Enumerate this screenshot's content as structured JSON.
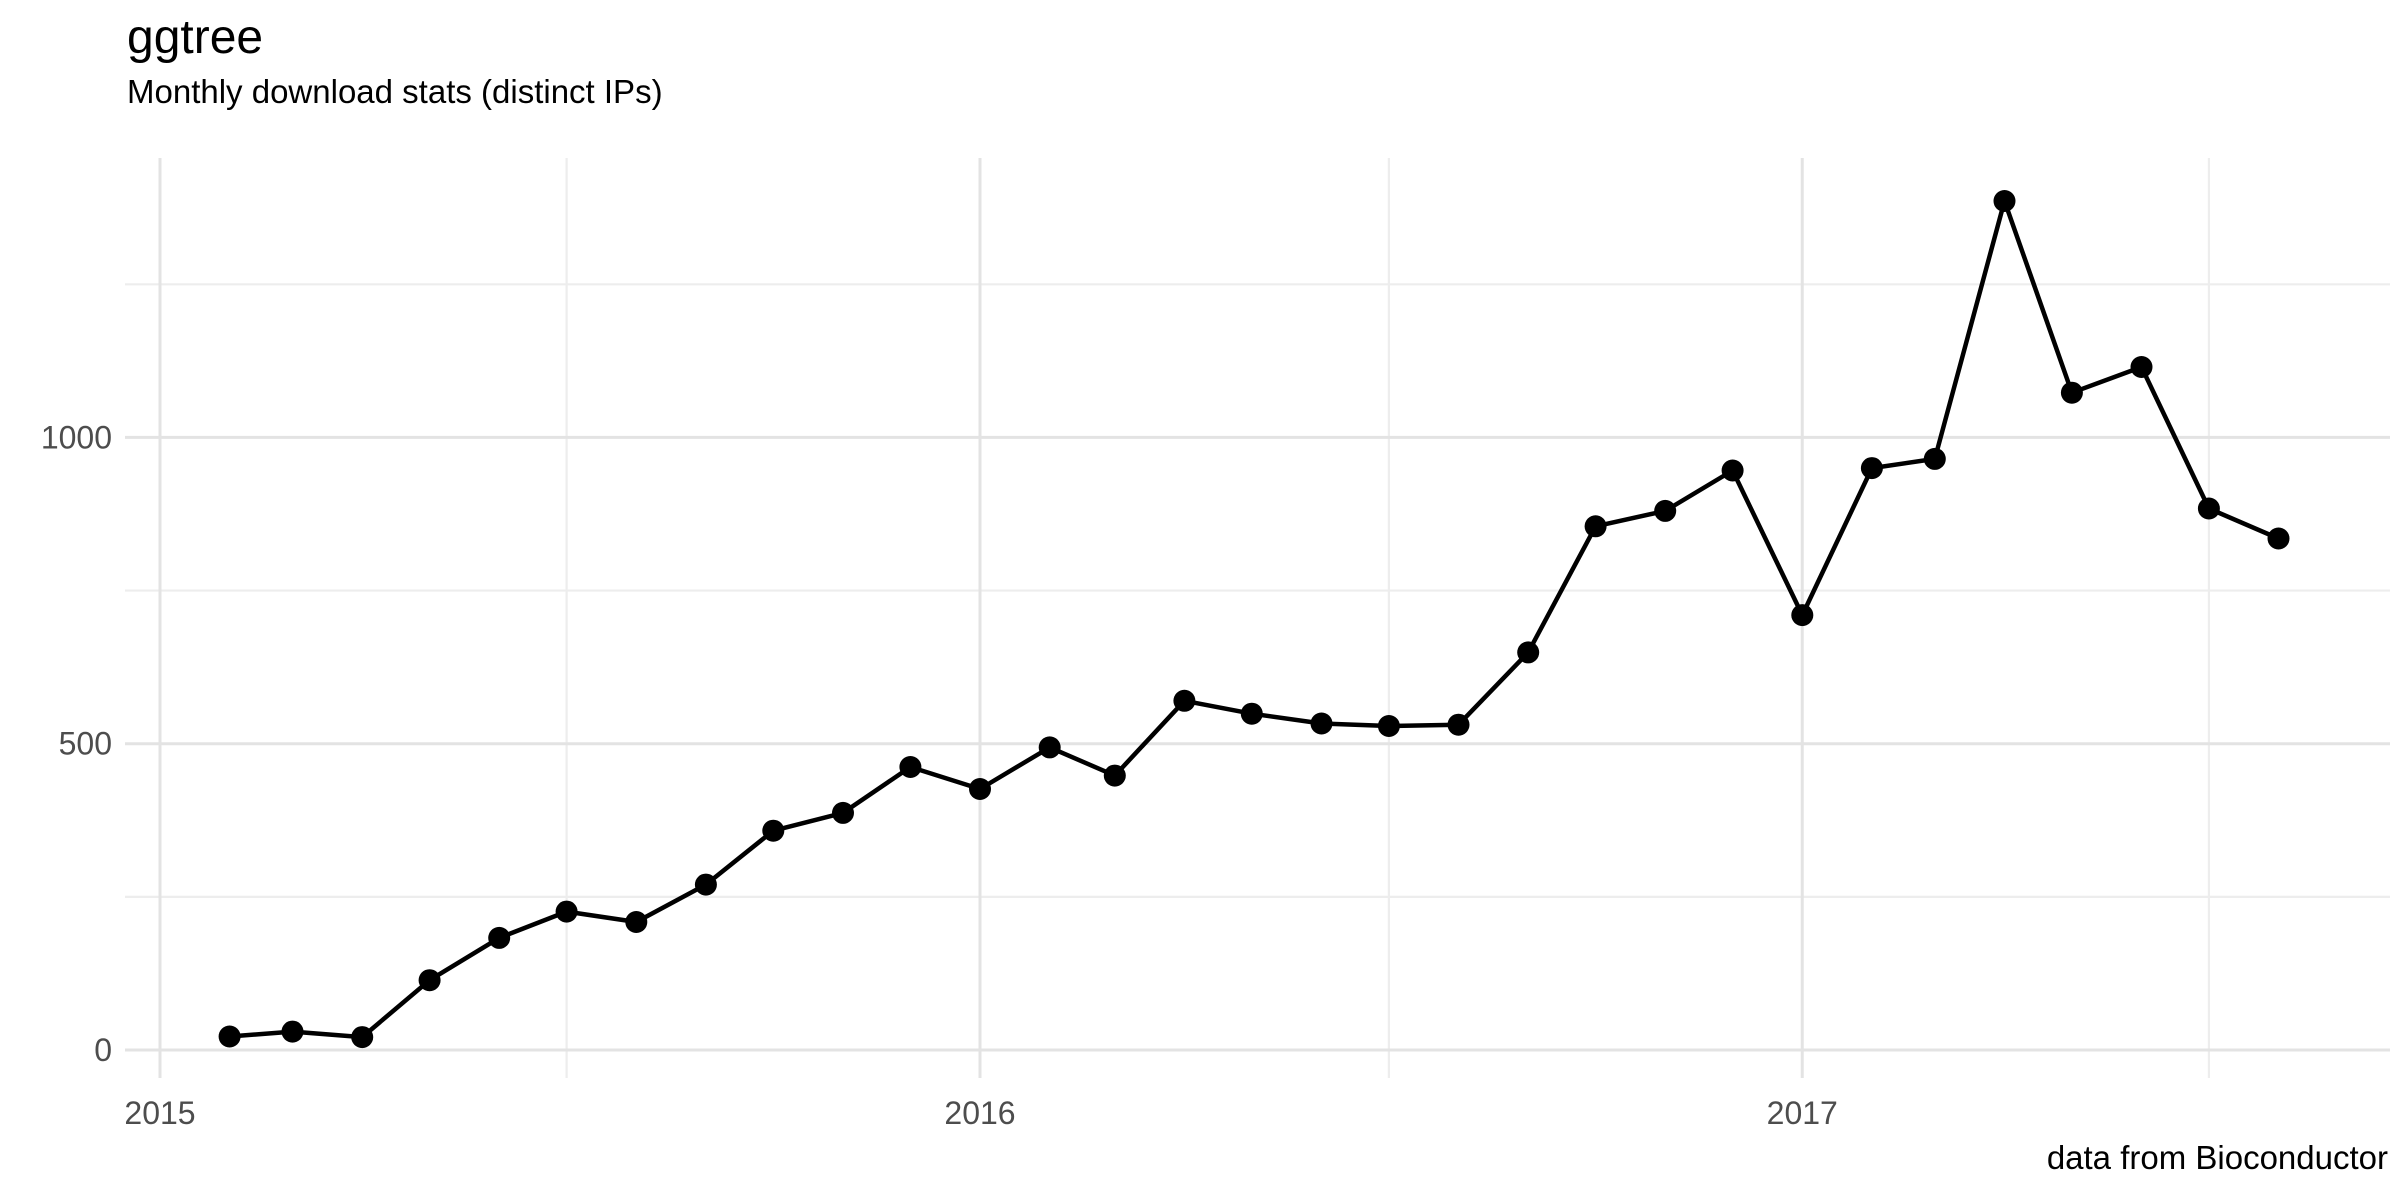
{
  "header": {
    "title": "ggtree",
    "subtitle": "Monthly download stats (distinct IPs)",
    "caption": "data from Bioconductor"
  },
  "chart_data": {
    "type": "line",
    "title": "ggtree",
    "subtitle": "Monthly download stats (distinct IPs)",
    "caption": "data from Bioconductor",
    "series_name": "monthly distinct IP downloads",
    "x": [
      "2015-02",
      "2015-03",
      "2015-04",
      "2015-05",
      "2015-06",
      "2015-07",
      "2015-08",
      "2015-09",
      "2015-10",
      "2015-11",
      "2015-12",
      "2016-01",
      "2016-02",
      "2016-03",
      "2016-04",
      "2016-05",
      "2016-06",
      "2016-07",
      "2016-08",
      "2016-09",
      "2016-10",
      "2016-11",
      "2016-12",
      "2017-01",
      "2017-02",
      "2017-03",
      "2017-04",
      "2017-05",
      "2017-06",
      "2017-07",
      "2017-08"
    ],
    "values": [
      22,
      30,
      21,
      114,
      183,
      226,
      209,
      270,
      358,
      387,
      462,
      426,
      494,
      448,
      570,
      549,
      533,
      529,
      531,
      649,
      855,
      880,
      946,
      710,
      950,
      965,
      1386,
      1073,
      1115,
      884,
      835
    ],
    "xlabel": "",
    "ylabel": "",
    "ylim": [
      -46,
      1456
    ],
    "xlim": [
      "2014-12-16",
      "2017-09-20"
    ],
    "grid": true,
    "legend_position": "none",
    "marker": "point",
    "y_ticks": [
      {
        "label": "0",
        "value": 0
      },
      {
        "label": "500",
        "value": 500
      },
      {
        "label": "1000",
        "value": 1000
      }
    ],
    "y_minor": [
      250,
      750,
      1250
    ],
    "x_ticks": [
      {
        "label": "2015",
        "date": "2015-01"
      },
      {
        "label": "2016",
        "date": "2016-01"
      },
      {
        "label": "2017",
        "date": "2017-01"
      }
    ],
    "x_minor": [
      "2015-07",
      "2016-07",
      "2017-07"
    ],
    "colors": {
      "line": "#000000",
      "point": "#000000",
      "grid_major": "#e3e3e3",
      "grid_minor": "#ededed",
      "axis_text": "#4d4d4d",
      "title_text": "#000000",
      "background": "#ffffff"
    }
  }
}
